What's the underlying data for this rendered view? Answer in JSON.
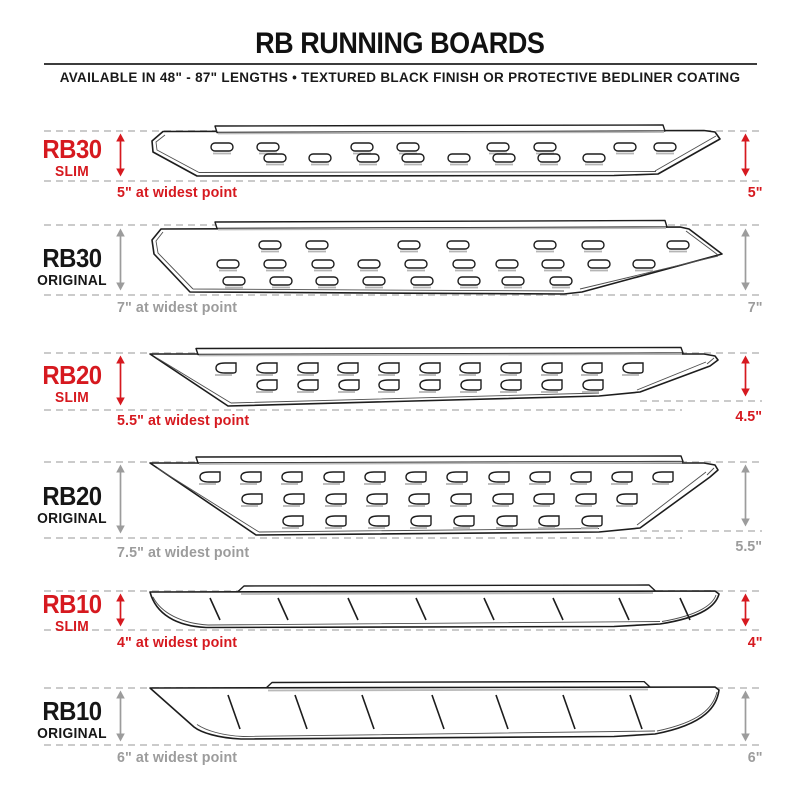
{
  "header": {
    "title": "RB RUNNING BOARDS",
    "subtitle": "AVAILABLE IN 48\" - 87\" LENGTHS   •   TEXTURED BLACK FINISH OR PROTECTIVE BEDLINER COATING"
  },
  "colors": {
    "accent_red": "#d6191f",
    "measure_gray": "#9c9c9c",
    "outline_dark": "#1d1d1d",
    "dash_gray": "#cbcbcb"
  },
  "boards": [
    {
      "model": "RB30",
      "variant": "SLIM",
      "width_note": "5\" at widest point",
      "height_label": "5\"",
      "accent": "red"
    },
    {
      "model": "RB30",
      "variant": "ORIGINAL",
      "width_note": "7\" at widest point",
      "height_label": "7\"",
      "accent": "gray"
    },
    {
      "model": "RB20",
      "variant": "SLIM",
      "width_note": "5.5\" at widest point",
      "height_label": "4.5\"",
      "accent": "red"
    },
    {
      "model": "RB20",
      "variant": "ORIGINAL",
      "width_note": "7.5\" at widest point",
      "height_label": "5.5\"",
      "accent": "gray"
    },
    {
      "model": "RB10",
      "variant": "SLIM",
      "width_note": "4\" at widest point",
      "height_label": "4\"",
      "accent": "red"
    },
    {
      "model": "RB10",
      "variant": "ORIGINAL",
      "width_note": "6\" at widest point",
      "height_label": "6\"",
      "accent": "gray"
    }
  ]
}
